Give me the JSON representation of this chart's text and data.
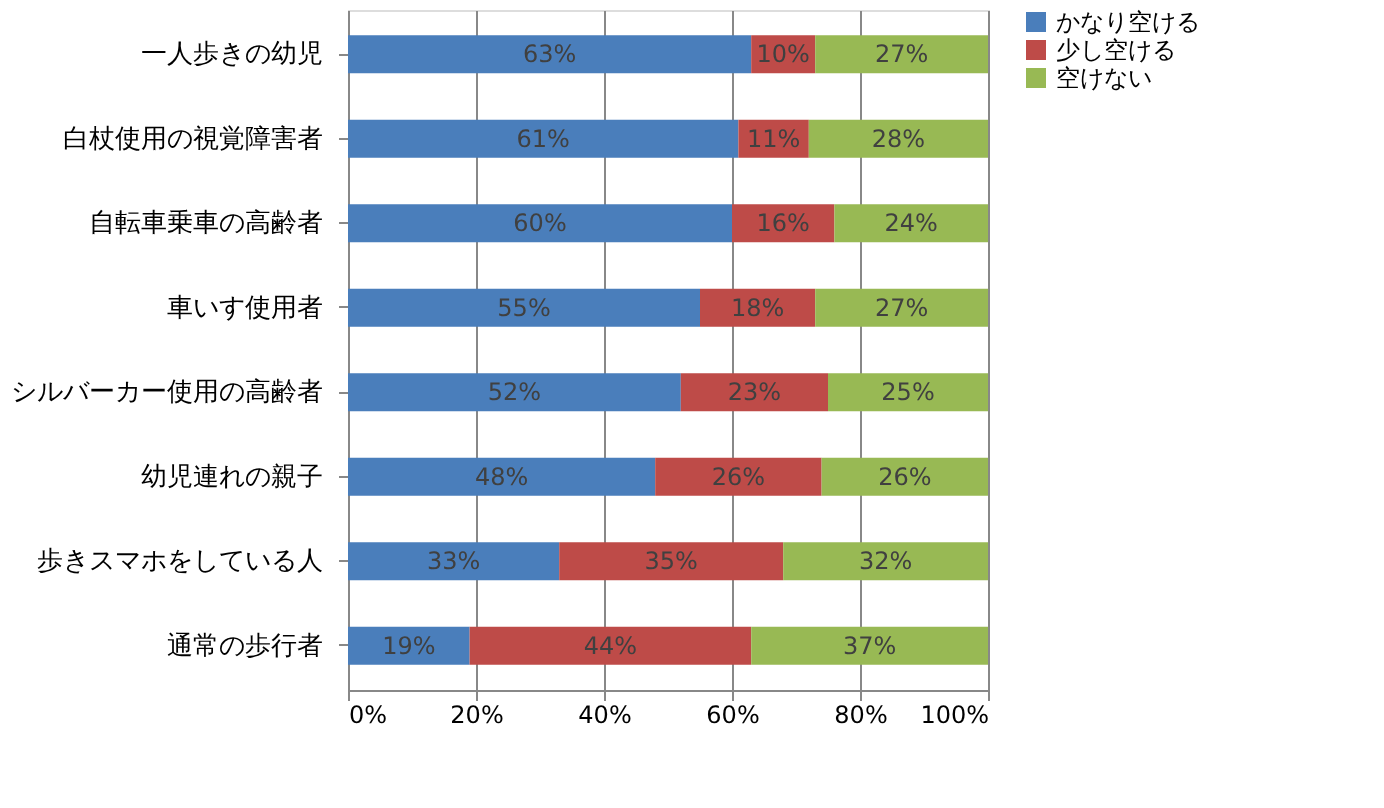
{
  "chart_data": {
    "type": "bar",
    "orientation": "horizontal",
    "stacked": true,
    "categories": [
      "一人歩きの幼児",
      "白杖使用の視覚障害者",
      "自転車乗車の高齢者",
      "車いす使用者",
      "シルバーカー使用の高齢者",
      "幼児連れの親子",
      "歩きスマホをしている人",
      "通常の歩行者"
    ],
    "series": [
      {
        "name": "かなり空ける",
        "color": "#4a7ebb",
        "values": [
          63,
          61,
          60,
          55,
          52,
          48,
          33,
          19
        ],
        "value_labels": [
          "63%",
          "61%",
          "60%",
          "55%",
          "52%",
          "48%",
          "33%",
          "19%"
        ]
      },
      {
        "name": "少し空ける",
        "color": "#be4b48",
        "values": [
          10,
          11,
          16,
          18,
          23,
          26,
          35,
          44
        ],
        "value_labels": [
          "10%",
          "11%",
          "16%",
          "18%",
          "23%",
          "26%",
          "35%",
          "44%"
        ]
      },
      {
        "name": "空けない",
        "color": "#98b954",
        "values": [
          27,
          28,
          24,
          27,
          25,
          26,
          32,
          37
        ],
        "value_labels": [
          "27%",
          "28%",
          "24%",
          "27%",
          "25%",
          "26%",
          "32%",
          "37%"
        ]
      }
    ],
    "xlim": [
      0,
      100
    ],
    "xticks": [
      {
        "value": 0,
        "label": "0%"
      },
      {
        "value": 20,
        "label": "20%"
      },
      {
        "value": 40,
        "label": "40%"
      },
      {
        "value": 60,
        "label": "60%"
      },
      {
        "value": 80,
        "label": "80%"
      },
      {
        "value": 100,
        "label": "100%"
      }
    ],
    "grid": "x",
    "legend": "right"
  }
}
